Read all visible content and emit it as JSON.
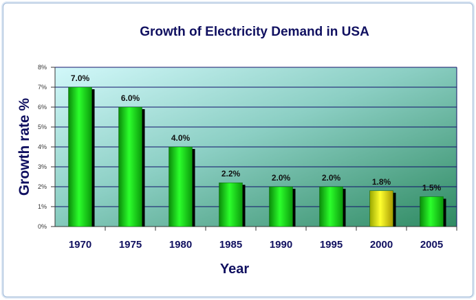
{
  "chart_data": {
    "type": "bar",
    "title": "Growth of Electricity Demand in USA",
    "xlabel": "Year",
    "ylabel": "Growth rate %",
    "categories": [
      "1970",
      "1975",
      "1980",
      "1985",
      "1990",
      "1995",
      "2000",
      "2005"
    ],
    "values": [
      7.0,
      6.0,
      4.0,
      2.2,
      2.0,
      2.0,
      1.8,
      1.5
    ],
    "data_labels": [
      "7.0%",
      "6.0%",
      "4.0%",
      "2.2%",
      "2.0%",
      "2.0%",
      "1.8%",
      "1.5%"
    ],
    "ylim": [
      0,
      8
    ],
    "yticks": [
      "0%",
      "1%",
      "2%",
      "3%",
      "4%",
      "5%",
      "6%",
      "7%",
      "8%"
    ],
    "grid": true,
    "legend": "none",
    "colors": {
      "bar": "#14d814",
      "highlight_bar": "#e8e800",
      "title": "#101060",
      "plot_bg_top": "#c8f4f8",
      "plot_bg_bottom": "#3a8a6a",
      "gridline": "#10106a"
    },
    "highlight_category": "2000"
  }
}
